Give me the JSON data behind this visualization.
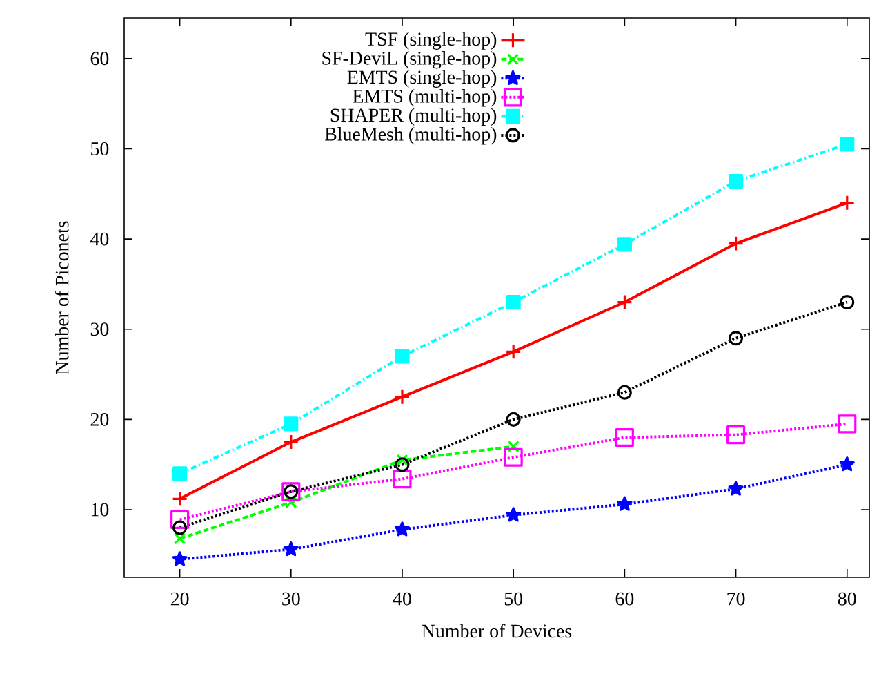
{
  "chart_data": {
    "type": "line",
    "xlabel": "Number of Devices",
    "ylabel": "Number of Piconets",
    "xlim": [
      15,
      82
    ],
    "ylim": [
      2.5,
      64.5
    ],
    "xticks": [
      20,
      30,
      40,
      50,
      60,
      70,
      80
    ],
    "yticks": [
      10,
      20,
      30,
      40,
      50,
      60
    ],
    "grid": false,
    "legend": "top",
    "series": [
      {
        "name": "TSF (single-hop)",
        "color": "#ff0000",
        "marker": "plus",
        "line_style": "solid",
        "x": [
          20,
          30,
          40,
          50,
          60,
          70,
          80
        ],
        "values": [
          11.2,
          17.5,
          22.5,
          27.5,
          33,
          39.5,
          44
        ]
      },
      {
        "name": "SF-DeviL (single-hop)",
        "color": "#00ff00",
        "marker": "cross",
        "line_style": "dashed",
        "x": [
          20,
          30,
          40,
          50
        ],
        "values": [
          6.8,
          10.8,
          15.5,
          17
        ]
      },
      {
        "name": "EMTS (single-hop)",
        "color": "#0000ff",
        "marker": "star",
        "line_style": "dotted",
        "x": [
          20,
          30,
          40,
          50,
          60,
          70,
          80
        ],
        "values": [
          4.5,
          5.6,
          7.8,
          9.4,
          10.6,
          12.3,
          15
        ]
      },
      {
        "name": "EMTS (multi-hop)",
        "color": "#ff00ff",
        "marker": "square",
        "line_style": "dotted",
        "x": [
          20,
          30,
          40,
          50,
          60,
          70,
          80
        ],
        "values": [
          8.9,
          12,
          13.4,
          15.8,
          18,
          18.3,
          19.5
        ]
      },
      {
        "name": "SHAPER (multi-hop)",
        "color": "#00ffff",
        "marker": "square*",
        "line_style": "dashdot",
        "x": [
          20,
          30,
          40,
          50,
          60,
          70,
          80
        ],
        "values": [
          14,
          19.5,
          27,
          33,
          39.4,
          46.4,
          50.5
        ]
      },
      {
        "name": "BlueMesh (multi-hop)",
        "color": "#000000",
        "marker": "circle",
        "line_style": "dotted",
        "x": [
          20,
          30,
          40,
          50,
          60,
          70,
          80
        ],
        "values": [
          8,
          12,
          15,
          20,
          23,
          29,
          33
        ]
      }
    ]
  }
}
